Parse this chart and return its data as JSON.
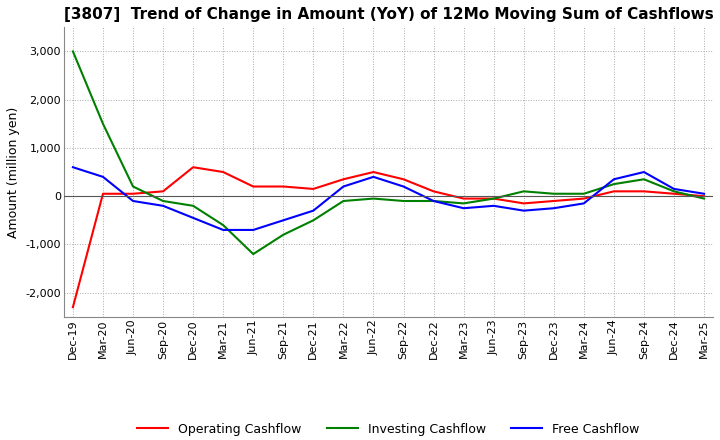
{
  "title": "[3807]  Trend of Change in Amount (YoY) of 12Mo Moving Sum of Cashflows",
  "ylabel": "Amount (million yen)",
  "ylim": [
    -2500,
    3500
  ],
  "yticks": [
    -2000,
    -1000,
    0,
    1000,
    2000,
    3000
  ],
  "background_color": "#ffffff",
  "grid_color": "#aaaaaa",
  "x_labels": [
    "Dec-19",
    "Mar-20",
    "Jun-20",
    "Sep-20",
    "Dec-20",
    "Mar-21",
    "Jun-21",
    "Sep-21",
    "Dec-21",
    "Mar-22",
    "Jun-22",
    "Sep-22",
    "Dec-22",
    "Mar-23",
    "Jun-23",
    "Sep-23",
    "Dec-23",
    "Mar-24",
    "Jun-24",
    "Sep-24",
    "Dec-24",
    "Mar-25"
  ],
  "operating": [
    -2300,
    50,
    50,
    100,
    600,
    500,
    200,
    200,
    150,
    350,
    500,
    350,
    100,
    -50,
    -50,
    -150,
    -100,
    -50,
    100,
    100,
    50,
    0
  ],
  "investing": [
    3000,
    1500,
    200,
    -100,
    -200,
    -600,
    -1200,
    -800,
    -500,
    -100,
    -50,
    -100,
    -100,
    -150,
    -50,
    100,
    50,
    50,
    250,
    350,
    100,
    -50
  ],
  "free": [
    600,
    400,
    -100,
    -200,
    -450,
    -700,
    -700,
    -500,
    -300,
    200,
    400,
    200,
    -100,
    -250,
    -200,
    -300,
    -250,
    -150,
    350,
    500,
    150,
    50
  ],
  "line_colors": {
    "operating": "#ff0000",
    "investing": "#008000",
    "free": "#0000ff"
  },
  "legend_labels": [
    "Operating Cashflow",
    "Investing Cashflow",
    "Free Cashflow"
  ],
  "title_fontsize": 11,
  "axis_fontsize": 8,
  "ylabel_fontsize": 9
}
